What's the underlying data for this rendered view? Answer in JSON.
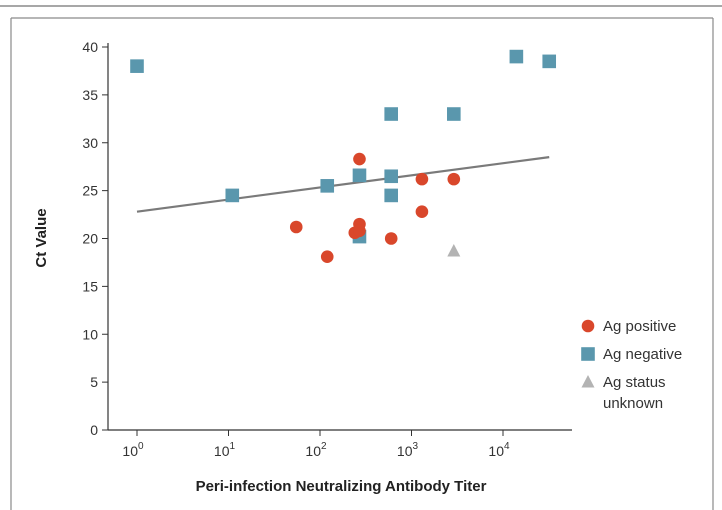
{
  "chart_data": {
    "type": "scatter",
    "xlabel": "Peri-infection Neutralizing Antibody Titer",
    "ylabel": "Ct Value",
    "x_scale": "log10",
    "xlim": [
      0.5,
      60000
    ],
    "ylim": [
      0,
      40
    ],
    "x_ticks": [
      1,
      10,
      100,
      1000,
      10000
    ],
    "x_tick_labels": [
      {
        "base": "10",
        "exp": "0"
      },
      {
        "base": "10",
        "exp": "1"
      },
      {
        "base": "10",
        "exp": "2"
      },
      {
        "base": "10",
        "exp": "3"
      },
      {
        "base": "10",
        "exp": "4"
      }
    ],
    "y_ticks": [
      0,
      5,
      10,
      15,
      20,
      25,
      30,
      35,
      40
    ],
    "grid": false,
    "legend_position": "right",
    "series": [
      {
        "name": "Ag positive",
        "marker": "circle",
        "color": "#d9472b",
        "points": [
          {
            "x": 55,
            "y": 21.2
          },
          {
            "x": 120,
            "y": 18.1
          },
          {
            "x": 240,
            "y": 20.6
          },
          {
            "x": 270,
            "y": 28.3
          },
          {
            "x": 270,
            "y": 21.5
          },
          {
            "x": 270,
            "y": 20.8
          },
          {
            "x": 600,
            "y": 20.0
          },
          {
            "x": 1300,
            "y": 26.2
          },
          {
            "x": 1300,
            "y": 22.8
          },
          {
            "x": 2900,
            "y": 26.2
          }
        ]
      },
      {
        "name": "Ag negative",
        "marker": "square",
        "color": "#5a97ad",
        "points": [
          {
            "x": 1,
            "y": 38.0
          },
          {
            "x": 11,
            "y": 24.5
          },
          {
            "x": 120,
            "y": 25.5
          },
          {
            "x": 270,
            "y": 26.6
          },
          {
            "x": 270,
            "y": 20.2
          },
          {
            "x": 600,
            "y": 33.0
          },
          {
            "x": 600,
            "y": 26.5
          },
          {
            "x": 600,
            "y": 24.5
          },
          {
            "x": 2900,
            "y": 33.0
          },
          {
            "x": 14000,
            "y": 39.0
          },
          {
            "x": 32000,
            "y": 38.5
          }
        ]
      },
      {
        "name": "Ag status unknown",
        "legend_lines": [
          "Ag status",
          "unknown"
        ],
        "marker": "triangle",
        "color": "#b3b3b3",
        "points": [
          {
            "x": 2900,
            "y": 18.7
          }
        ]
      }
    ],
    "trend_line": {
      "color": "#7a7a7a",
      "points": [
        {
          "x": 1,
          "y": 22.8
        },
        {
          "x": 32000,
          "y": 28.5
        }
      ]
    }
  }
}
